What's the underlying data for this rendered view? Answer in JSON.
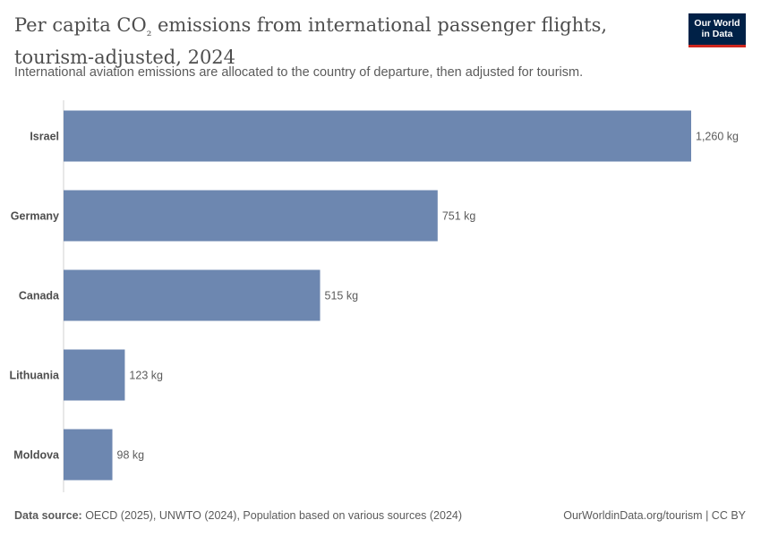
{
  "header": {
    "title_line1_pre": "Per capita CO",
    "title_sub": "₂",
    "title_line1_post": " emissions from international passenger flights,",
    "title_line2": "tourism-adjusted, 2024",
    "subtitle": "International aviation emissions are allocated to the country of departure, then adjusted for tourism."
  },
  "logo": {
    "line1": "Our World",
    "line2": "in Data",
    "bg": "#002147",
    "accent": "#ce261e"
  },
  "footer": {
    "source_label": "Data source:",
    "source_text": " OECD (2025), UNWTO (2024), Population based on various sources (2024)",
    "right": "OurWorldinData.org/tourism | CC BY"
  },
  "chart_data": {
    "type": "bar",
    "orientation": "horizontal",
    "categories": [
      "Israel",
      "Germany",
      "Canada",
      "Lithuania",
      "Moldova"
    ],
    "values": [
      1260,
      751,
      515,
      123,
      98
    ],
    "value_labels": [
      "1,260 kg",
      "751 kg",
      "515 kg",
      "123 kg",
      "98 kg"
    ],
    "unit": "kg",
    "xlim": [
      0,
      1260
    ],
    "bar_color": "#6d87b0",
    "axis_color": "#d0d0d0"
  }
}
